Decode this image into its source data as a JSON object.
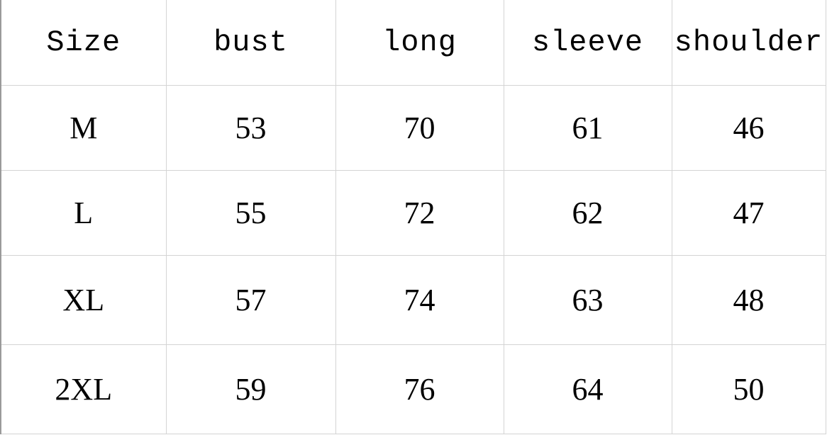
{
  "table": {
    "headers": [
      "Size",
      "bust",
      "long",
      "sleeve",
      "shoulder"
    ],
    "rows": [
      [
        "M",
        "53",
        "70",
        "61",
        "46"
      ],
      [
        "L",
        "55",
        "72",
        "62",
        "47"
      ],
      [
        "XL",
        "57",
        "74",
        "63",
        "48"
      ],
      [
        "2XL",
        "59",
        "76",
        "64",
        "50"
      ]
    ]
  }
}
